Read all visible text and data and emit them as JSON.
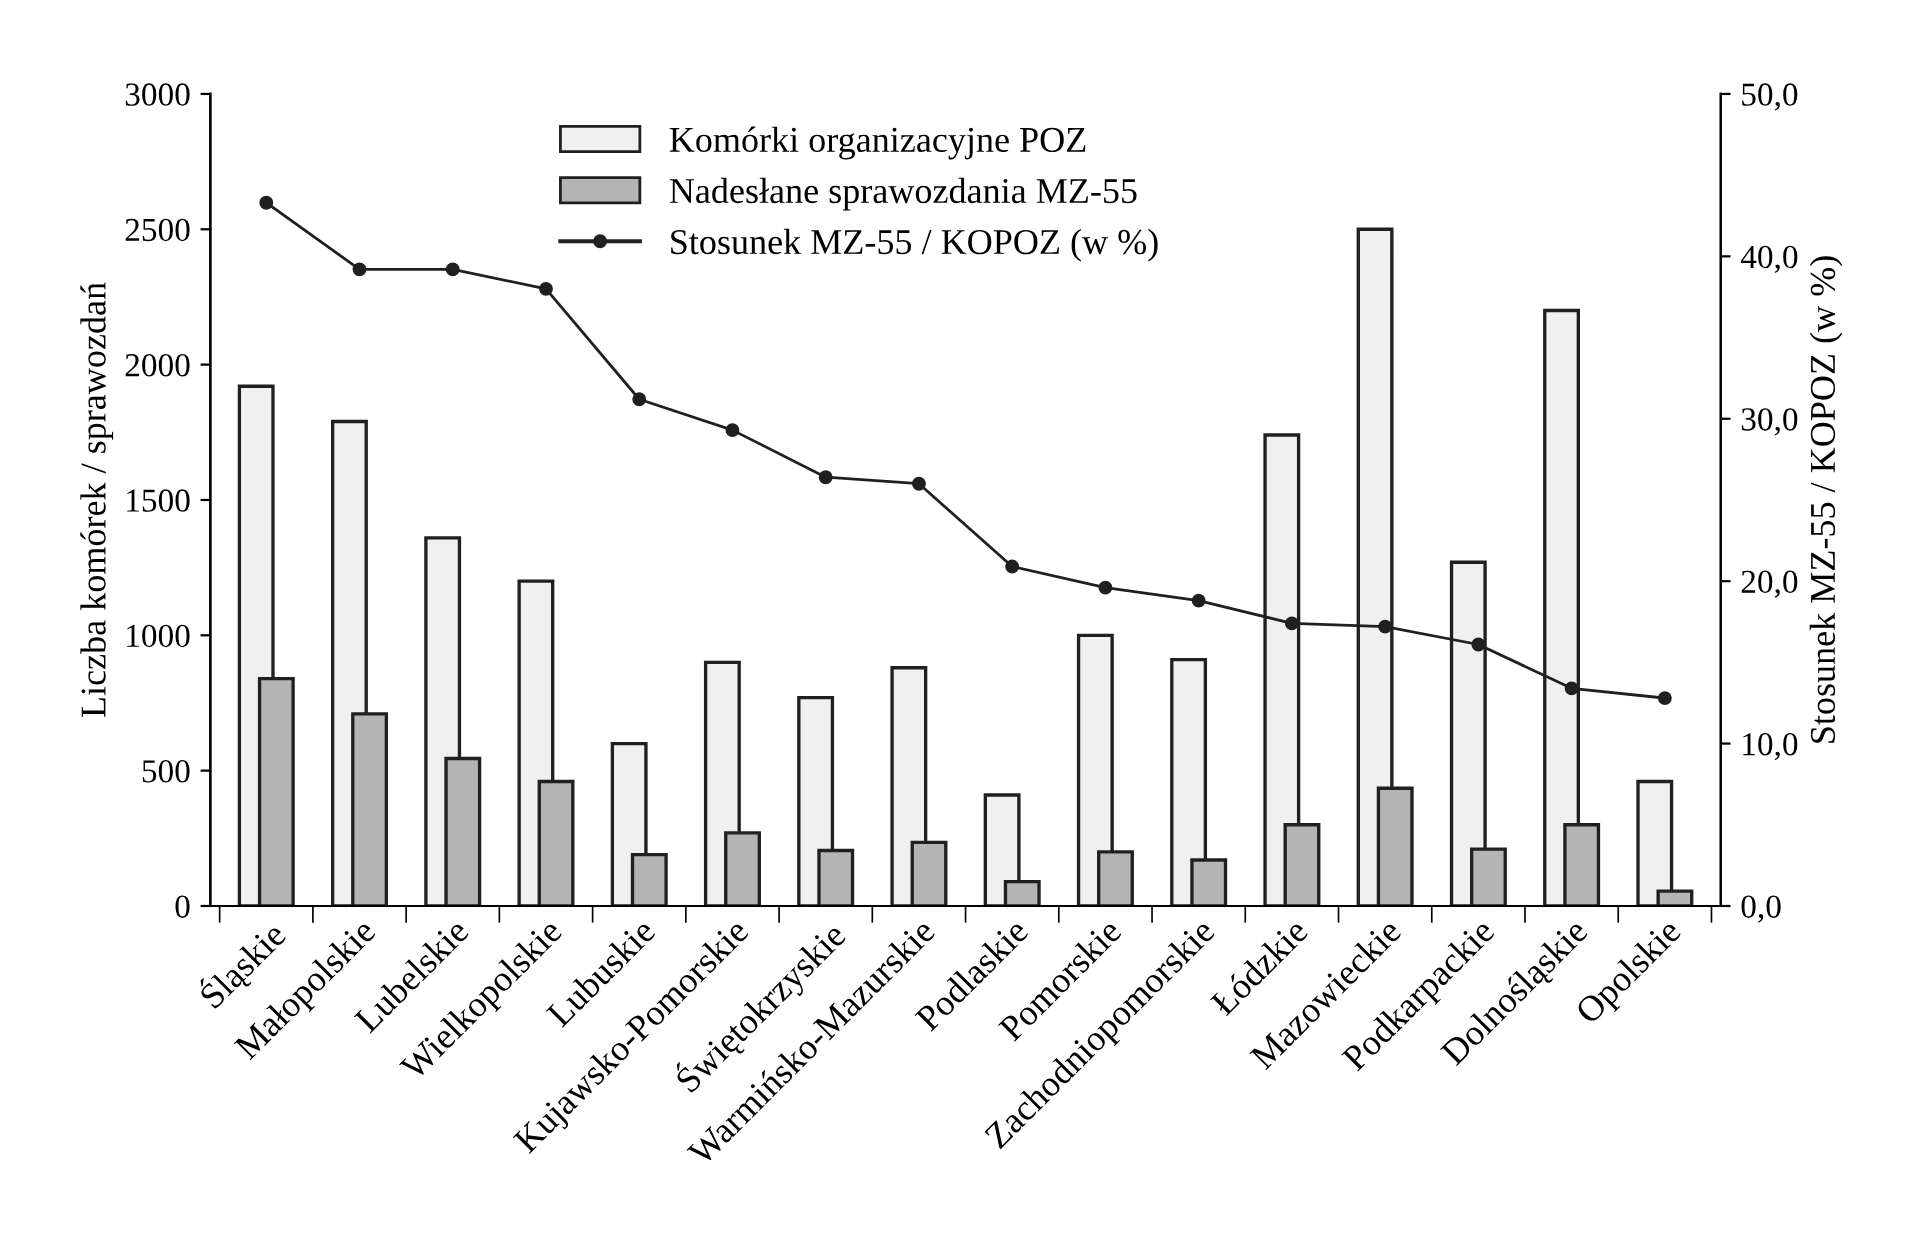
{
  "chart_data": {
    "type": "bar",
    "ylabel": "Liczba komórek / sprawozdań",
    "y2label": "Stosunek MZ-55 / KOPOZ (w %)",
    "categories": [
      "Śląskie",
      "Małopolskie",
      "Lubelskie",
      "Wielkopolskie",
      "Lubuskie",
      "Kujawsko-Pomorskie",
      "Świętokrzyskie",
      "Warmińsko-Mazurskie",
      "Podlaskie",
      "Pomorskie",
      "Zachodniopomorskie",
      "Łódzkie",
      "Mazowieckie",
      "Podkarpackie",
      "Dolnośląskie",
      "Opolskie"
    ],
    "series": [
      {
        "name": "Komórki organizacyjne POZ",
        "color": "#f0f0f0",
        "values": [
          1920,
          1790,
          1360,
          1200,
          600,
          900,
          770,
          880,
          410,
          1000,
          910,
          1740,
          2500,
          1270,
          2200,
          460
        ]
      },
      {
        "name": "Nadesłane sprawozdania MZ-55",
        "color": "#b4b4b4",
        "values": [
          840,
          710,
          545,
          460,
          190,
          270,
          205,
          235,
          90,
          200,
          170,
          300,
          435,
          210,
          300,
          55
        ]
      },
      {
        "name": "Stosunek MZ-55 / KOPOZ (w %)",
        "type": "line",
        "axis": "y2",
        "color": "#202020",
        "marker": "circle",
        "values": [
          43.3,
          39.2,
          39.2,
          38.0,
          31.2,
          29.3,
          26.4,
          26.0,
          20.9,
          19.6,
          18.8,
          17.4,
          17.2,
          16.1,
          13.4,
          12.8
        ]
      }
    ],
    "ylim": [
      0,
      3000
    ],
    "yticks": [
      0,
      500,
      1000,
      1500,
      2000,
      2500,
      3000
    ],
    "y2lim": [
      0,
      50
    ],
    "y2ticks": [
      {
        "value": 0,
        "label": "0,0"
      },
      {
        "value": 10,
        "label": "10,0"
      },
      {
        "value": 20,
        "label": "20,0"
      },
      {
        "value": 30,
        "label": "30,0"
      },
      {
        "value": 40,
        "label": "40,0"
      },
      {
        "value": 50,
        "label": "50,0"
      }
    ],
    "grid": false,
    "legend": "top"
  }
}
